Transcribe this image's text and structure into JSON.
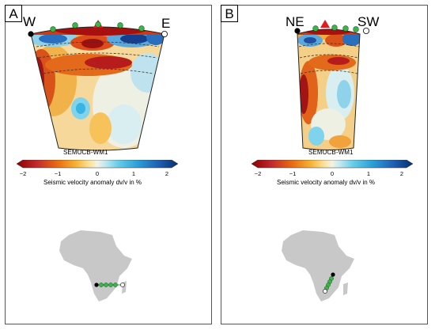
{
  "panels": [
    {
      "letter": "A",
      "left_label": "W",
      "right_label": "E",
      "model_name": "SEMUCB-WM1",
      "stations": "green",
      "colorbar": {
        "ticks": [
          "−2",
          "−1",
          "0",
          "1",
          "2"
        ],
        "label": "Seismic velocity anomaly dv/v in %"
      }
    },
    {
      "letter": "B",
      "left_label": "NE",
      "right_label": "SW",
      "model_name": "SEMUCB-WM1",
      "stations": "green",
      "colorbar": {
        "ticks": [
          "−2",
          "−1",
          "0",
          "1",
          "2"
        ],
        "label": "Seismic velocity anomaly dv/v in %"
      }
    }
  ],
  "colors": {
    "slow": "#a50f15",
    "neutral": "#f2f2e4",
    "fast": "#08306b",
    "station": "#3cb44b",
    "volcano": "#e41a1c",
    "land": "#c8c8c8"
  }
}
